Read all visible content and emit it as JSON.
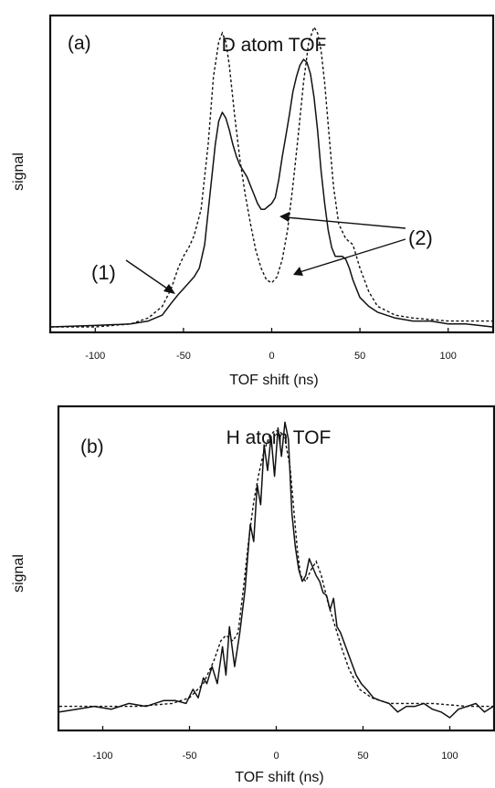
{
  "chart_data": [
    {
      "type": "line",
      "panel_label": "(a)",
      "title": "D atom TOF",
      "xlabel": "TOF shift (ns)",
      "ylabel": "signal",
      "xlim": [
        -125,
        125
      ],
      "ylim": [
        0,
        1.05
      ],
      "xticks": [
        -100,
        -50,
        0,
        50,
        100
      ],
      "grid": false,
      "series": [
        {
          "style": "solid",
          "x": [
            -125,
            -100,
            -80,
            -70,
            -62,
            -57,
            -53,
            -50,
            -47,
            -44,
            -41,
            -38,
            -35,
            -32,
            -30,
            -28,
            -26,
            -24,
            -22,
            -20,
            -18,
            -16,
            -14,
            -12,
            -10,
            -8,
            -6,
            -4,
            -2,
            0,
            2,
            4,
            6,
            8,
            10,
            12,
            14,
            16,
            18,
            20,
            22,
            24,
            26,
            28,
            30,
            32,
            34,
            36,
            38,
            40,
            42,
            44,
            46,
            48,
            50,
            55,
            60,
            70,
            80,
            90,
            100,
            110,
            125
          ],
          "y": [
            0.0,
            0.005,
            0.01,
            0.02,
            0.04,
            0.08,
            0.11,
            0.13,
            0.15,
            0.17,
            0.2,
            0.28,
            0.45,
            0.62,
            0.7,
            0.73,
            0.71,
            0.67,
            0.62,
            0.58,
            0.55,
            0.53,
            0.51,
            0.48,
            0.45,
            0.42,
            0.4,
            0.4,
            0.41,
            0.42,
            0.44,
            0.5,
            0.58,
            0.65,
            0.72,
            0.8,
            0.85,
            0.89,
            0.91,
            0.9,
            0.86,
            0.78,
            0.67,
            0.53,
            0.42,
            0.33,
            0.27,
            0.24,
            0.24,
            0.24,
            0.23,
            0.2,
            0.16,
            0.13,
            0.1,
            0.07,
            0.05,
            0.03,
            0.02,
            0.02,
            0.01,
            0.01,
            0.0
          ]
        },
        {
          "style": "dashed",
          "x": [
            -125,
            -100,
            -80,
            -70,
            -62,
            -57,
            -53,
            -50,
            -47,
            -44,
            -40,
            -36,
            -33,
            -30,
            -28,
            -26,
            -24,
            -21,
            -18,
            -15,
            -12,
            -9,
            -6,
            -3,
            0,
            3,
            6,
            9,
            12,
            15,
            18,
            21,
            24,
            26,
            28,
            30,
            32,
            35,
            38,
            42,
            46,
            50,
            55,
            60,
            70,
            80,
            100,
            125
          ],
          "y": [
            0.0,
            0.0,
            0.01,
            0.03,
            0.07,
            0.13,
            0.2,
            0.24,
            0.27,
            0.31,
            0.4,
            0.62,
            0.85,
            0.97,
            1.0,
            0.97,
            0.89,
            0.72,
            0.57,
            0.45,
            0.35,
            0.26,
            0.2,
            0.16,
            0.15,
            0.17,
            0.23,
            0.33,
            0.48,
            0.65,
            0.83,
            0.97,
            1.02,
            1.0,
            0.94,
            0.83,
            0.69,
            0.48,
            0.35,
            0.3,
            0.28,
            0.2,
            0.12,
            0.07,
            0.04,
            0.03,
            0.02,
            0.02
          ]
        }
      ],
      "annotations": [
        {
          "text": "(1)"
        },
        {
          "text": "(2)"
        }
      ]
    },
    {
      "type": "line",
      "panel_label": "(b)",
      "title": "H atom TOF",
      "xlabel": "TOF shift (ns)",
      "ylabel": "signal",
      "xlim": [
        -125,
        125
      ],
      "ylim": [
        0,
        1.08
      ],
      "xticks": [
        -100,
        -50,
        0,
        50,
        100
      ],
      "grid": false,
      "series": [
        {
          "style": "solid",
          "x": [
            -125,
            -115,
            -105,
            -95,
            -85,
            -75,
            -65,
            -58,
            -52,
            -48,
            -45,
            -42,
            -40,
            -37,
            -34,
            -31,
            -29,
            -27,
            -24,
            -21,
            -18,
            -15,
            -13,
            -11,
            -9,
            -7,
            -5,
            -3,
            -1,
            1,
            3,
            5,
            7,
            9,
            11,
            13,
            15,
            17,
            19,
            21,
            23,
            25,
            27,
            29,
            31,
            33,
            35,
            37,
            40,
            43,
            46,
            49,
            52,
            56,
            60,
            65,
            70,
            75,
            80,
            85,
            90,
            95,
            100,
            105,
            110,
            115,
            120,
            125
          ],
          "y": [
            0.02,
            0.03,
            0.04,
            0.03,
            0.05,
            0.04,
            0.06,
            0.06,
            0.05,
            0.1,
            0.07,
            0.14,
            0.12,
            0.18,
            0.12,
            0.25,
            0.15,
            0.32,
            0.18,
            0.3,
            0.45,
            0.68,
            0.62,
            0.82,
            0.75,
            0.96,
            0.87,
            0.99,
            0.85,
            1.02,
            0.92,
            1.04,
            0.98,
            0.72,
            0.6,
            0.52,
            0.48,
            0.5,
            0.56,
            0.53,
            0.5,
            0.48,
            0.44,
            0.43,
            0.38,
            0.42,
            0.32,
            0.3,
            0.25,
            0.2,
            0.15,
            0.12,
            0.1,
            0.07,
            0.06,
            0.05,
            0.02,
            0.04,
            0.04,
            0.05,
            0.03,
            0.02,
            0.0,
            0.03,
            0.04,
            0.05,
            0.02,
            0.04
          ]
        },
        {
          "style": "dashed",
          "x": [
            -125,
            -100,
            -80,
            -60,
            -50,
            -42,
            -36,
            -32,
            -29,
            -27,
            -25,
            -22,
            -19,
            -16,
            -13,
            -10,
            -7,
            -4,
            -1,
            2,
            5,
            8,
            10,
            12,
            14,
            17,
            20,
            23,
            26,
            30,
            34,
            38,
            42,
            48,
            55,
            65,
            75,
            90,
            110,
            125
          ],
          "y": [
            0.04,
            0.04,
            0.04,
            0.05,
            0.07,
            0.12,
            0.2,
            0.27,
            0.29,
            0.28,
            0.27,
            0.3,
            0.45,
            0.62,
            0.76,
            0.86,
            0.94,
            0.99,
            1.01,
            1.01,
            0.98,
            0.88,
            0.74,
            0.6,
            0.5,
            0.48,
            0.52,
            0.55,
            0.5,
            0.4,
            0.32,
            0.24,
            0.17,
            0.1,
            0.07,
            0.05,
            0.05,
            0.05,
            0.04,
            0.04
          ]
        }
      ]
    }
  ]
}
